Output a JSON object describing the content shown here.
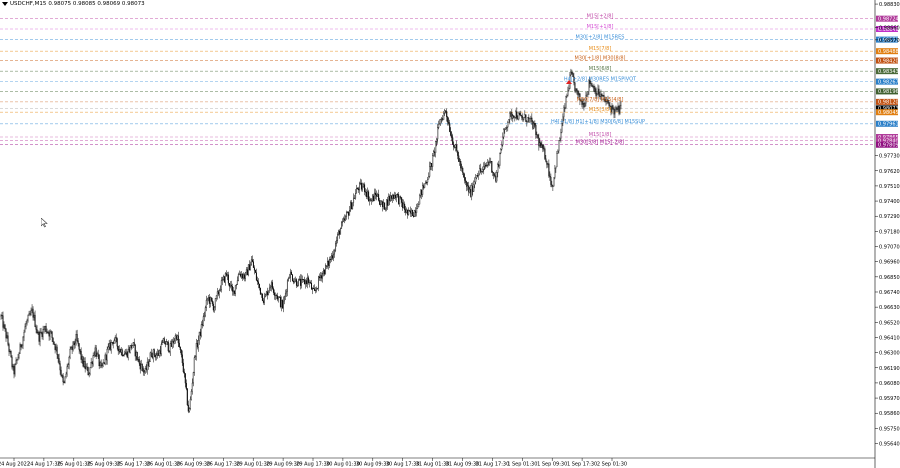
{
  "window": {
    "symbol": "USDCHF,M15",
    "ohlc": "0.98075 0.98085 0.98069 0.98073"
  },
  "colors": {
    "background": "#ffffff",
    "candles": "#000000",
    "grid": "#c8c8c8"
  },
  "chart_data": {
    "type": "candlestick",
    "ylim": [
      0.95535,
      0.98845
    ],
    "y_ticks": [
      "0.98830",
      "0.98660",
      "0.98570",
      "0.97730",
      "0.97620",
      "0.97510",
      "0.97400",
      "0.97290",
      "0.97180",
      "0.97070",
      "0.96960",
      "0.96850",
      "0.96740",
      "0.96630",
      "0.96520",
      "0.96410",
      "0.96300",
      "0.96190",
      "0.96080",
      "0.95970",
      "0.95860",
      "0.95750",
      "0.95640"
    ],
    "x_ticks": [
      "24 Aug 2022",
      "24 Aug 17:30",
      "25 Aug 01:30",
      "25 Aug 09:30",
      "25 Aug 17:30",
      "26 Aug 01:30",
      "26 Aug 09:30",
      "26 Aug 17:30",
      "29 Aug 01:30",
      "29 Aug 09:30",
      "29 Aug 17:30",
      "30 Aug 01:30",
      "30 Aug 09:30",
      "30 Aug 17:30",
      "31 Aug 01:30",
      "31 Aug 09:30",
      "31 Aug 17:30",
      "1 Sep 01:30",
      "1 Sep 09:30",
      "1 Sep 17:30",
      "2 Sep 01:30"
    ],
    "close_path": [
      0.9656,
      0.9639,
      0.9615,
      0.9632,
      0.9651,
      0.966,
      0.9641,
      0.9648,
      0.9643,
      0.963,
      0.9605,
      0.9629,
      0.964,
      0.9623,
      0.9615,
      0.9633,
      0.9617,
      0.9631,
      0.964,
      0.9632,
      0.9629,
      0.9636,
      0.9623,
      0.9615,
      0.963,
      0.9628,
      0.9638,
      0.9633,
      0.9643,
      0.9622,
      0.9585,
      0.963,
      0.9648,
      0.967,
      0.9663,
      0.9678,
      0.9687,
      0.9672,
      0.9688,
      0.9685,
      0.9697,
      0.968,
      0.9668,
      0.968,
      0.9672,
      0.9663,
      0.9688,
      0.9682,
      0.968,
      0.9683,
      0.9672,
      0.9686,
      0.9692,
      0.9702,
      0.9718,
      0.9727,
      0.9738,
      0.975,
      0.975,
      0.974,
      0.9745,
      0.9735,
      0.9742,
      0.9745,
      0.9738,
      0.973,
      0.9732,
      0.9745,
      0.9756,
      0.9771,
      0.9797,
      0.9806,
      0.9786,
      0.9772,
      0.9754,
      0.9745,
      0.9761,
      0.9762,
      0.977,
      0.9755,
      0.9784,
      0.98,
      0.9804,
      0.98,
      0.98,
      0.9795,
      0.9781,
      0.9772,
      0.975,
      0.9779,
      0.9808,
      0.9832,
      0.9817,
      0.981,
      0.9827,
      0.982,
      0.9815,
      0.981,
      0.9805,
      0.9807
    ],
    "price_levels": [
      {
        "label": "M15[+2/8]",
        "price": "0.98724",
        "value": 0.98724,
        "color": "#c04aa8",
        "badge": "#b03a9a",
        "tx": 600
      },
      {
        "label": "M15[+1/8]",
        "price": "0.98649",
        "value": 0.98649,
        "color": "#d44ad4",
        "badge": "#c030c8",
        "tx": 600
      },
      {
        "label": "M30[+2/8] M15RES",
        "price": "0.98572",
        "value": 0.98572,
        "color": "#3a8fd8",
        "badge": "#2a7fc8",
        "tx": 600
      },
      {
        "label": "M15[7/8]",
        "price": "0.98488",
        "value": 0.98488,
        "color": "#e88c18",
        "badge": "#e07e10",
        "tx": 600
      },
      {
        "label": "M30[+1/8] M30[8/8]",
        "price": "0.98420",
        "value": 0.9842,
        "color": "#c86018",
        "badge": "#c05010",
        "tx": 600
      },
      {
        "label": "M15[6/8]",
        "price": "0.98343",
        "value": 0.98343,
        "color": "#507040",
        "badge": "#4a6a38",
        "tx": 600
      },
      {
        "label": "H4[+2/8] M30RES M15PIVOT",
        "price": "0.98267",
        "value": 0.98267,
        "color": "#3a8fd8",
        "badge": "#2a7fc8",
        "tx": 600
      },
      {
        "label": "",
        "price": "0.98196",
        "value": 0.98196,
        "color": "#507040",
        "badge": "#406030",
        "tx": 600
      },
      {
        "label": "M30[7/8] M15[4/8]",
        "price": "0.98120",
        "value": 0.9812,
        "color": "#c86018",
        "badge": "#c05010",
        "tx": 600
      },
      {
        "label": "",
        "price": "0.98073",
        "value": 0.98073,
        "color": "#b0b0b0",
        "badge": "#000000",
        "tx": 600
      },
      {
        "label": "M15[3/8]",
        "price": "0.98045",
        "value": 0.98045,
        "color": "#e88c18",
        "badge": "#e07e10",
        "tx": 600
      },
      {
        "label": "H4[+1/8] H1[+1/8] M30[6/8] M15SUP",
        "price": "0.97961",
        "value": 0.97961,
        "color": "#3a8fd8",
        "badge": "#2a7fc8",
        "tx": 598
      },
      {
        "label": "M15[1/8]",
        "price": "0.97865",
        "value": 0.97865,
        "color": "#c04aa8",
        "badge": "#b03a9a",
        "tx": 600
      },
      {
        "label": "",
        "price": "0.97840",
        "value": 0.9784,
        "color": "#c04aa8",
        "badge": "#b03a9a",
        "tx": 600
      },
      {
        "label": "M30[5/8] M15[-2/8]",
        "price": "0.97809",
        "value": 0.97809,
        "color": "#a01890",
        "badge": "#901080",
        "tx": 600
      }
    ]
  }
}
